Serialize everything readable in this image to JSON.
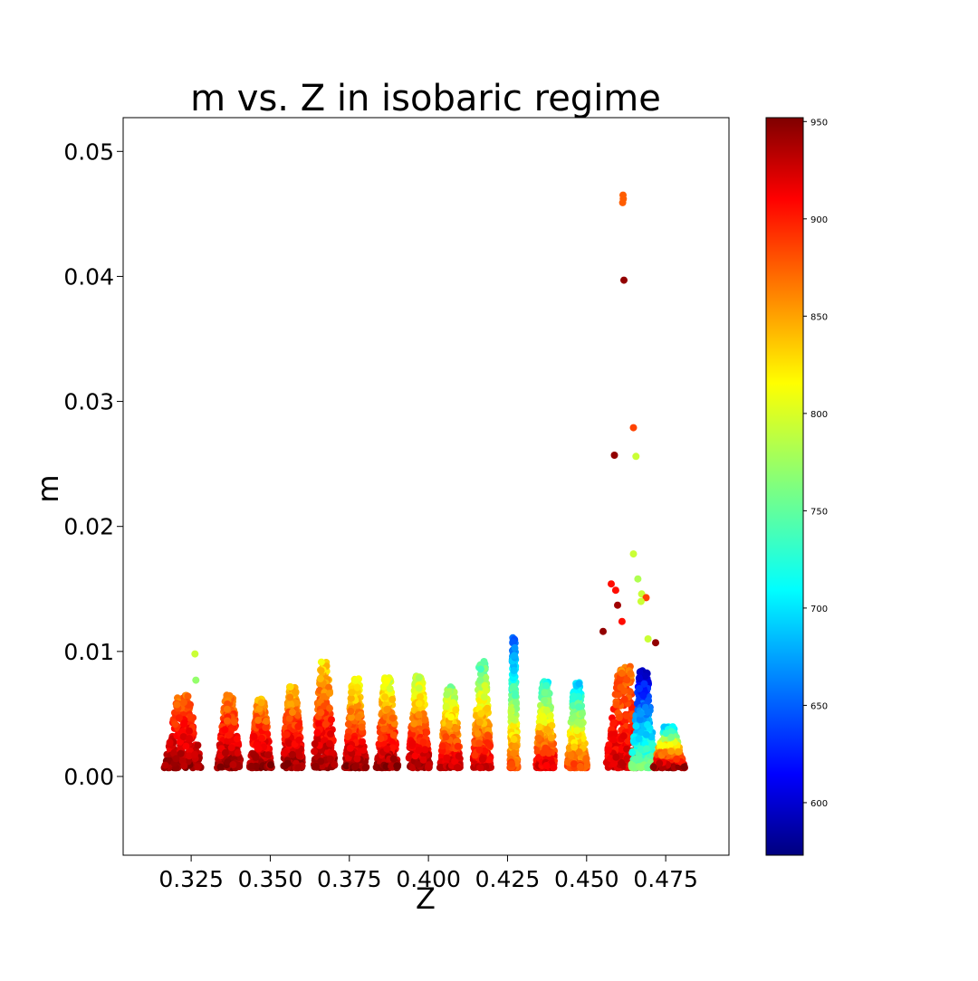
{
  "chart_data": {
    "type": "scatter",
    "title": "m vs. Z in isobaric regime",
    "xlabel": "Z",
    "ylabel": "m",
    "xlim": [
      0.3035,
      0.495
    ],
    "ylim": [
      -0.0063,
      0.0527
    ],
    "x_ticks": [
      0.325,
      0.35,
      0.375,
      0.4,
      0.425,
      0.45,
      0.475
    ],
    "x_tick_labels": [
      "0.325",
      "0.350",
      "0.375",
      "0.400",
      "0.425",
      "0.450",
      "0.475"
    ],
    "y_ticks": [
      0.0,
      0.01,
      0.02,
      0.03,
      0.04,
      0.05
    ],
    "y_tick_labels": [
      "0.00",
      "0.01",
      "0.02",
      "0.03",
      "0.04",
      "0.05"
    ],
    "grid": false,
    "colormap": "jet",
    "colorbar": {
      "range": [
        573,
        952
      ],
      "ticks": [
        600,
        650,
        700,
        750,
        800,
        850,
        900,
        950
      ],
      "tick_labels": [
        "600",
        "650",
        "700",
        "750",
        "800",
        "850",
        "900",
        "950"
      ]
    },
    "clusters": [
      {
        "z_center": 0.3225,
        "z_spread": 0.006,
        "m_max": 0.0065,
        "c_low": 860,
        "c_high": 945
      },
      {
        "z_center": 0.337,
        "z_spread": 0.0038,
        "m_max": 0.0065,
        "c_low": 850,
        "c_high": 945
      },
      {
        "z_center": 0.347,
        "z_spread": 0.0035,
        "m_max": 0.0062,
        "c_low": 840,
        "c_high": 945
      },
      {
        "z_center": 0.357,
        "z_spread": 0.0035,
        "m_max": 0.0072,
        "c_low": 830,
        "c_high": 945
      },
      {
        "z_center": 0.367,
        "z_spread": 0.0035,
        "m_max": 0.0092,
        "c_low": 820,
        "c_high": 945
      },
      {
        "z_center": 0.377,
        "z_spread": 0.0035,
        "m_max": 0.0078,
        "c_low": 800,
        "c_high": 945
      },
      {
        "z_center": 0.387,
        "z_spread": 0.0035,
        "m_max": 0.0079,
        "c_low": 790,
        "c_high": 945
      },
      {
        "z_center": 0.397,
        "z_spread": 0.0035,
        "m_max": 0.0081,
        "c_low": 780,
        "c_high": 940
      },
      {
        "z_center": 0.407,
        "z_spread": 0.0035,
        "m_max": 0.0072,
        "c_low": 760,
        "c_high": 930
      },
      {
        "z_center": 0.417,
        "z_spread": 0.003,
        "m_max": 0.0092,
        "c_low": 740,
        "c_high": 920
      },
      {
        "z_center": 0.427,
        "z_spread": 0.0012,
        "m_max": 0.0111,
        "c_low": 650,
        "c_high": 880
      },
      {
        "z_center": 0.437,
        "z_spread": 0.0032,
        "m_max": 0.0076,
        "c_low": 720,
        "c_high": 920
      },
      {
        "z_center": 0.447,
        "z_spread": 0.0032,
        "m_max": 0.0075,
        "c_low": 700,
        "c_high": 880
      },
      {
        "z_center": 0.462,
        "z_spread": 0.006,
        "m_max": 0.0088,
        "c_low": 860,
        "c_high": 920
      },
      {
        "z_center": 0.468,
        "z_spread": 0.004,
        "m_max": 0.0086,
        "c_low": 600,
        "c_high": 760
      },
      {
        "z_center": 0.476,
        "z_spread": 0.005,
        "m_max": 0.004,
        "c_low": 700,
        "c_high": 945
      }
    ],
    "outliers": [
      {
        "z": 0.4615,
        "m": 0.0465,
        "c": 870
      },
      {
        "z": 0.4616,
        "m": 0.0462,
        "c": 870
      },
      {
        "z": 0.4614,
        "m": 0.0459,
        "c": 870
      },
      {
        "z": 0.4618,
        "m": 0.0397,
        "c": 945
      },
      {
        "z": 0.4648,
        "m": 0.0279,
        "c": 880
      },
      {
        "z": 0.4588,
        "m": 0.0257,
        "c": 945
      },
      {
        "z": 0.4656,
        "m": 0.0256,
        "c": 790
      },
      {
        "z": 0.4648,
        "m": 0.0178,
        "c": 790
      },
      {
        "z": 0.4662,
        "m": 0.0158,
        "c": 780
      },
      {
        "z": 0.4578,
        "m": 0.0154,
        "c": 900
      },
      {
        "z": 0.4592,
        "m": 0.0149,
        "c": 900
      },
      {
        "z": 0.4674,
        "m": 0.0146,
        "c": 790
      },
      {
        "z": 0.4688,
        "m": 0.0143,
        "c": 880
      },
      {
        "z": 0.4672,
        "m": 0.014,
        "c": 790
      },
      {
        "z": 0.4598,
        "m": 0.0137,
        "c": 940
      },
      {
        "z": 0.4612,
        "m": 0.0124,
        "c": 900
      },
      {
        "z": 0.4552,
        "m": 0.0116,
        "c": 945
      },
      {
        "z": 0.4694,
        "m": 0.011,
        "c": 790
      },
      {
        "z": 0.4718,
        "m": 0.0107,
        "c": 945
      },
      {
        "z": 0.3262,
        "m": 0.0098,
        "c": 790
      },
      {
        "z": 0.3265,
        "m": 0.0077,
        "c": 770
      }
    ]
  }
}
